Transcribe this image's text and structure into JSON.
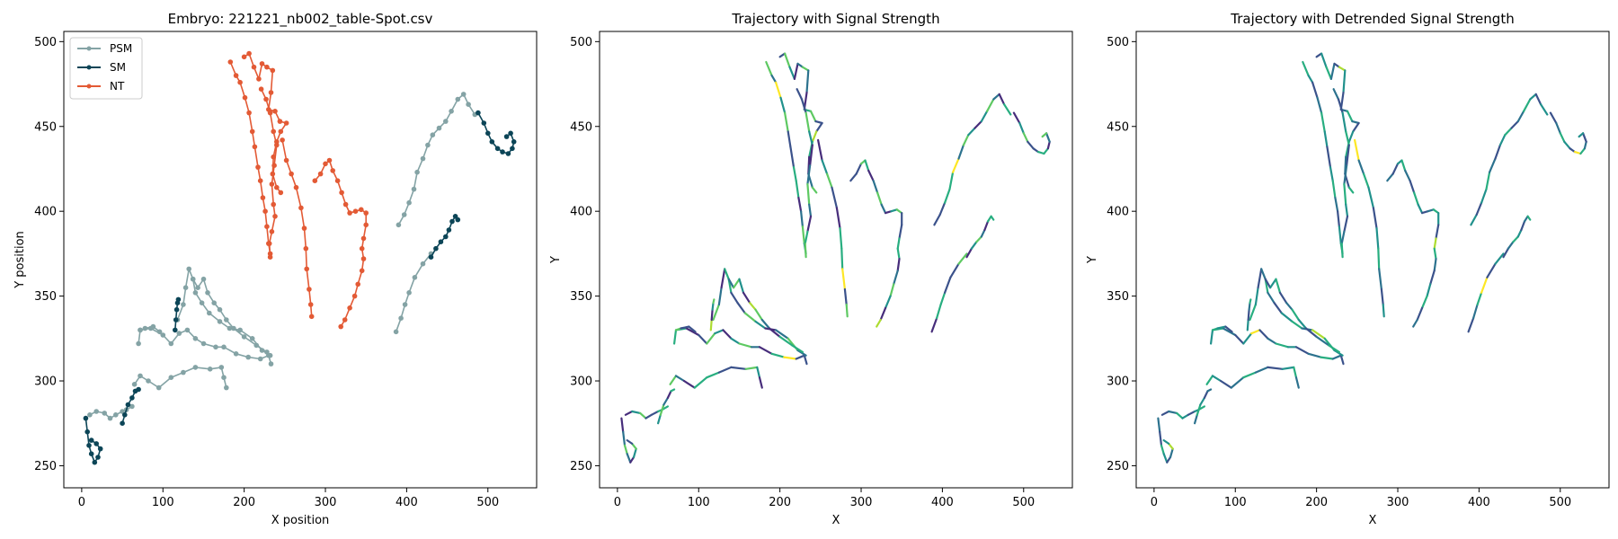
{
  "colors": {
    "PSM": "#84a3a5",
    "SM": "#0c4557",
    "NT": "#e35a35",
    "viridis": [
      "#440154",
      "#472d7b",
      "#3b528b",
      "#2c728e",
      "#21918c",
      "#28ae80",
      "#5ec962",
      "#addc30",
      "#fde725"
    ]
  },
  "chart_data": [
    {
      "type": "line",
      "title": "Embryo: 221221_nb002_table-Spot.csv",
      "xlabel": "X position",
      "ylabel": "Y position",
      "xlim": [
        -22,
        560
      ],
      "ylim": [
        237,
        506
      ],
      "xticks": [
        0,
        100,
        200,
        300,
        400,
        500
      ],
      "yticks": [
        250,
        300,
        350,
        400,
        450,
        500
      ],
      "legend": {
        "placement": "top-left",
        "entries": [
          "PSM",
          "SM",
          "NT"
        ]
      },
      "markers": true,
      "series": [
        {
          "name": "PSM",
          "tracks": [
            [
              [
                65,
                298
              ],
              [
                72,
                303
              ],
              [
                82,
                300
              ],
              [
                95,
                296
              ],
              [
                110,
                302
              ],
              [
                125,
                305
              ],
              [
                140,
                308
              ],
              [
                158,
                307
              ],
              [
                172,
                308
              ],
              [
                175,
                302
              ],
              [
                178,
                296
              ]
            ],
            [
              [
                70,
                322
              ],
              [
                72,
                330
              ],
              [
                85,
                331
              ],
              [
                100,
                327
              ],
              [
                110,
                322
              ],
              [
                120,
                328
              ],
              [
                130,
                330
              ],
              [
                140,
                325
              ],
              [
                150,
                322
              ],
              [
                165,
                320
              ],
              [
                175,
                320
              ],
              [
                190,
                316
              ],
              [
                205,
                314
              ],
              [
                220,
                313
              ],
              [
                230,
                315
              ],
              [
                233,
                310
              ]
            ],
            [
              [
                72,
                330
              ],
              [
                78,
                331
              ],
              [
                88,
                332
              ],
              [
                96,
                329
              ]
            ],
            [
              [
                118,
                336
              ],
              [
                125,
                345
              ],
              [
                128,
                355
              ],
              [
                132,
                366
              ],
              [
                137,
                360
              ],
              [
                140,
                352
              ],
              [
                148,
                346
              ],
              [
                157,
                340
              ],
              [
                170,
                335
              ],
              [
                182,
                331
              ],
              [
                195,
                330
              ],
              [
                210,
                325
              ],
              [
                222,
                318
              ],
              [
                232,
                315
              ]
            ],
            [
              [
                137,
                360
              ],
              [
                143,
                355
              ],
              [
                150,
                360
              ],
              [
                155,
                352
              ],
              [
                163,
                346
              ],
              [
                170,
                342
              ],
              [
                178,
                336
              ],
              [
                187,
                331
              ],
              [
                200,
                326
              ],
              [
                215,
                321
              ],
              [
                228,
                317
              ]
            ],
            [
              [
                10,
                280
              ],
              [
                18,
                282
              ],
              [
                28,
                281
              ],
              [
                35,
                278
              ],
              [
                42,
                280
              ],
              [
                50,
                282
              ],
              [
                55,
                283
              ],
              [
                62,
                285
              ]
            ],
            [
              [
                387,
                329
              ],
              [
                393,
                337
              ],
              [
                398,
                345
              ],
              [
                403,
                352
              ],
              [
                410,
                361
              ],
              [
                420,
                369
              ],
              [
                430,
                375
              ]
            ],
            [
              [
                390,
                392
              ],
              [
                397,
                398
              ],
              [
                403,
                405
              ],
              [
                409,
                413
              ],
              [
                413,
                423
              ],
              [
                420,
                431
              ],
              [
                426,
                439
              ],
              [
                432,
                445
              ],
              [
                440,
                449
              ],
              [
                448,
                453
              ],
              [
                455,
                459
              ],
              [
                463,
                466
              ],
              [
                470,
                469
              ],
              [
                476,
                463
              ],
              [
                484,
                457
              ]
            ]
          ]
        },
        {
          "name": "SM",
          "tracks": [
            [
              [
                5,
                278
              ],
              [
                7,
                270
              ],
              [
                9,
                262
              ],
              [
                12,
                257
              ],
              [
                16,
                252
              ],
              [
                20,
                255
              ],
              [
                23,
                260
              ],
              [
                18,
                263
              ],
              [
                12,
                265
              ]
            ],
            [
              [
                50,
                275
              ],
              [
                53,
                280
              ],
              [
                57,
                286
              ],
              [
                62,
                290
              ],
              [
                66,
                294
              ],
              [
                70,
                295
              ]
            ],
            [
              [
                115,
                330
              ],
              [
                116,
                336
              ],
              [
                117,
                342
              ],
              [
                118,
                346
              ],
              [
                119,
                348
              ]
            ],
            [
              [
                430,
                373
              ],
              [
                436,
                378
              ],
              [
                442,
                382
              ],
              [
                448,
                385
              ],
              [
                452,
                389
              ],
              [
                456,
                394
              ],
              [
                460,
                397
              ],
              [
                463,
                395
              ]
            ],
            [
              [
                488,
                458
              ],
              [
                495,
                452
              ],
              [
                500,
                446
              ],
              [
                505,
                441
              ],
              [
                512,
                437
              ],
              [
                518,
                435
              ],
              [
                525,
                434
              ],
              [
                530,
                437
              ],
              [
                532,
                441
              ],
              [
                528,
                446
              ],
              [
                523,
                444
              ]
            ]
          ]
        },
        {
          "name": "NT",
          "tracks": [
            [
              [
                183,
                488
              ],
              [
                190,
                480
              ],
              [
                195,
                476
              ],
              [
                201,
                467
              ],
              [
                206,
                458
              ],
              [
                210,
                447
              ],
              [
                213,
                438
              ],
              [
                217,
                426
              ],
              [
                220,
                418
              ],
              [
                223,
                408
              ],
              [
                226,
                400
              ],
              [
                228,
                391
              ],
              [
                230,
                381
              ],
              [
                232,
                375
              ]
            ],
            [
              [
                200,
                491
              ],
              [
                206,
                493
              ],
              [
                212,
                485
              ],
              [
                218,
                478
              ],
              [
                222,
                487
              ],
              [
                228,
                485
              ],
              [
                235,
                483
              ],
              [
                233,
                470
              ],
              [
                230,
                460
              ],
              [
                238,
                459
              ],
              [
                244,
                453
              ],
              [
                252,
                452
              ],
              [
                245,
                447
              ],
              [
                240,
                441
              ],
              [
                236,
                432
              ],
              [
                235,
                422
              ],
              [
                240,
                414
              ],
              [
                245,
                411
              ]
            ],
            [
              [
                221,
                472
              ],
              [
                227,
                466
              ],
              [
                232,
                458
              ],
              [
                236,
                447
              ],
              [
                240,
                439
              ],
              [
                237,
                427
              ],
              [
                234,
                416
              ],
              [
                236,
                404
              ],
              [
                238,
                397
              ],
              [
                234,
                388
              ],
              [
                231,
                381
              ],
              [
                232,
                373
              ]
            ],
            [
              [
                247,
                442
              ],
              [
                252,
                430
              ],
              [
                258,
                422
              ],
              [
                264,
                414
              ],
              [
                270,
                402
              ],
              [
                274,
                390
              ],
              [
                276,
                378
              ],
              [
                277,
                366
              ],
              [
                280,
                354
              ],
              [
                282,
                345
              ],
              [
                283,
                338
              ]
            ],
            [
              [
                287,
                418
              ],
              [
                294,
                422
              ],
              [
                300,
                428
              ],
              [
                305,
                430
              ],
              [
                309,
                424
              ],
              [
                315,
                418
              ],
              [
                320,
                411
              ],
              [
                325,
                404
              ],
              [
                330,
                399
              ],
              [
                337,
                400
              ],
              [
                344,
                401
              ],
              [
                350,
                399
              ],
              [
                350,
                392
              ],
              [
                347,
                384
              ],
              [
                345,
                378
              ],
              [
                347,
                372
              ],
              [
                345,
                365
              ],
              [
                340,
                357
              ],
              [
                336,
                350
              ],
              [
                330,
                343
              ],
              [
                324,
                336
              ],
              [
                319,
                332
              ]
            ]
          ]
        }
      ]
    },
    {
      "type": "line",
      "title": "Trajectory with Signal Strength",
      "xlabel": "X",
      "ylabel": "Y",
      "xlim": [
        -22,
        560
      ],
      "ylim": [
        237,
        506
      ],
      "xticks": [
        0,
        100,
        200,
        300,
        400,
        500
      ],
      "yticks": [
        250,
        300,
        350,
        400,
        450,
        500
      ],
      "colorscale": "viridis"
    },
    {
      "type": "line",
      "title": "Trajectory with Detrended Signal Strength",
      "xlabel": "X",
      "ylabel": "Y",
      "xlim": [
        -22,
        560
      ],
      "ylim": [
        237,
        506
      ],
      "xticks": [
        0,
        100,
        200,
        300,
        400,
        500
      ],
      "yticks": [
        250,
        300,
        350,
        400,
        450,
        500
      ],
      "colorscale": "viridis"
    }
  ]
}
